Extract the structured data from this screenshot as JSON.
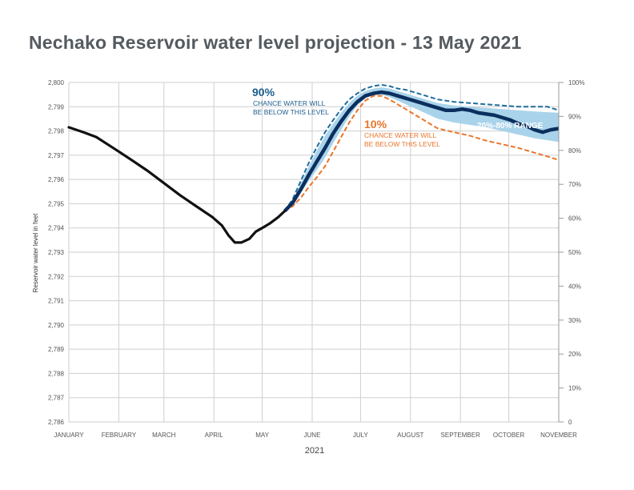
{
  "title": "Nechako Reservoir water level projection - 13 May 2021",
  "chart_data": {
    "type": "line",
    "title": "Nechako Reservoir water level projection - 13 May 2021",
    "xlabel": "2021",
    "ylabel": "Reservoir water level in feet",
    "ylim": [
      2786,
      2800
    ],
    "y2lim": [
      0,
      100
    ],
    "x_unit": "day of year 2021",
    "xlim": [
      1,
      305
    ],
    "grid": true,
    "months": [
      {
        "label": "JANUARY",
        "day": 1
      },
      {
        "label": "FEBRUARY",
        "day": 32
      },
      {
        "label": "MARCH",
        "day": 60
      },
      {
        "label": "APRIL",
        "day": 91
      },
      {
        "label": "MAY",
        "day": 121
      },
      {
        "label": "JUNE",
        "day": 152
      },
      {
        "label": "JULY",
        "day": 182
      },
      {
        "label": "AUGUST",
        "day": 213
      },
      {
        "label": "SEPTEMBER",
        "day": 244
      },
      {
        "label": "OCTOBER",
        "day": 274
      },
      {
        "label": "NOVEMBER",
        "day": 305
      }
    ],
    "y_ticks": [
      "2,786",
      "2,787",
      "2,788",
      "2,789",
      "2,790",
      "2,791",
      "2,792",
      "2,793",
      "2,794",
      "2,795",
      "2,796",
      "2,797",
      "2,798",
      "2,799",
      "2,800"
    ],
    "y2_ticks": [
      "0",
      "10%",
      "20%",
      "30%",
      "40%",
      "50%",
      "60%",
      "70%",
      "80%",
      "90%",
      "100%"
    ],
    "annotations": {
      "p90_pct": "90%",
      "p90_text1": "CHANCE WATER WILL",
      "p90_text2": "BE BELOW THIS LEVEL",
      "p10_pct": "10%",
      "p10_text1": "CHANCE WATER WILL",
      "p10_text2": "BE BELOW THIS LEVEL",
      "range": "20%-80% RANGE"
    },
    "colors": {
      "observed": "#111111",
      "median": "#0b2f5e",
      "p90": "#1f6e9f",
      "p10": "#e8762c",
      "band": "#a9d3ea",
      "grid": "#cfcfcf"
    },
    "series": {
      "observed": [
        [
          1,
          2798.15
        ],
        [
          10,
          2797.95
        ],
        [
          18,
          2797.75
        ],
        [
          25,
          2797.45
        ],
        [
          32,
          2797.15
        ],
        [
          40,
          2796.8
        ],
        [
          50,
          2796.35
        ],
        [
          60,
          2795.85
        ],
        [
          70,
          2795.35
        ],
        [
          80,
          2794.9
        ],
        [
          90,
          2794.45
        ],
        [
          96,
          2794.1
        ],
        [
          100,
          2793.7
        ],
        [
          104,
          2793.4
        ],
        [
          108,
          2793.4
        ],
        [
          113,
          2793.55
        ],
        [
          117,
          2793.85
        ],
        [
          121,
          2794.0
        ],
        [
          126,
          2794.2
        ],
        [
          131,
          2794.45
        ],
        [
          135,
          2794.7
        ]
      ],
      "median": [
        [
          135,
          2794.7
        ],
        [
          140,
          2795.05
        ],
        [
          145,
          2795.6
        ],
        [
          150,
          2796.2
        ],
        [
          155,
          2796.75
        ],
        [
          160,
          2797.3
        ],
        [
          165,
          2797.9
        ],
        [
          170,
          2798.4
        ],
        [
          175,
          2798.85
        ],
        [
          180,
          2799.2
        ],
        [
          185,
          2799.45
        ],
        [
          190,
          2799.55
        ],
        [
          195,
          2799.6
        ],
        [
          200,
          2799.55
        ],
        [
          205,
          2799.45
        ],
        [
          210,
          2799.35
        ],
        [
          215,
          2799.25
        ],
        [
          220,
          2799.15
        ],
        [
          225,
          2799.05
        ],
        [
          230,
          2798.95
        ],
        [
          235,
          2798.85
        ],
        [
          240,
          2798.85
        ],
        [
          245,
          2798.9
        ],
        [
          250,
          2798.85
        ],
        [
          255,
          2798.75
        ],
        [
          260,
          2798.7
        ],
        [
          265,
          2798.65
        ],
        [
          270,
          2798.55
        ],
        [
          275,
          2798.45
        ],
        [
          280,
          2798.3
        ],
        [
          285,
          2798.2
        ],
        [
          290,
          2798.05
        ],
        [
          295,
          2797.95
        ],
        [
          300,
          2798.05
        ],
        [
          305,
          2798.1
        ]
      ],
      "p90": [
        [
          135,
          2794.7
        ],
        [
          140,
          2795.2
        ],
        [
          145,
          2795.95
        ],
        [
          150,
          2796.7
        ],
        [
          155,
          2797.35
        ],
        [
          160,
          2797.95
        ],
        [
          165,
          2798.45
        ],
        [
          170,
          2798.9
        ],
        [
          175,
          2799.3
        ],
        [
          180,
          2799.55
        ],
        [
          185,
          2799.75
        ],
        [
          190,
          2799.85
        ],
        [
          195,
          2799.9
        ],
        [
          200,
          2799.85
        ],
        [
          205,
          2799.75
        ],
        [
          210,
          2799.7
        ],
        [
          215,
          2799.6
        ],
        [
          220,
          2799.5
        ],
        [
          225,
          2799.4
        ],
        [
          230,
          2799.3
        ],
        [
          240,
          2799.2
        ],
        [
          250,
          2799.15
        ],
        [
          260,
          2799.1
        ],
        [
          270,
          2799.05
        ],
        [
          280,
          2799.0
        ],
        [
          290,
          2799.0
        ],
        [
          298,
          2799.0
        ],
        [
          305,
          2798.85
        ]
      ],
      "p10": [
        [
          135,
          2794.7
        ],
        [
          140,
          2794.9
        ],
        [
          145,
          2795.25
        ],
        [
          150,
          2795.7
        ],
        [
          155,
          2796.1
        ],
        [
          160,
          2796.55
        ],
        [
          165,
          2797.15
        ],
        [
          170,
          2797.75
        ],
        [
          175,
          2798.35
        ],
        [
          180,
          2798.85
        ],
        [
          185,
          2799.25
        ],
        [
          190,
          2799.45
        ],
        [
          195,
          2799.45
        ],
        [
          200,
          2799.3
        ],
        [
          205,
          2799.1
        ],
        [
          210,
          2798.9
        ],
        [
          215,
          2798.7
        ],
        [
          220,
          2798.5
        ],
        [
          225,
          2798.3
        ],
        [
          230,
          2798.1
        ],
        [
          240,
          2797.95
        ],
        [
          250,
          2797.8
        ],
        [
          260,
          2797.6
        ],
        [
          270,
          2797.45
        ],
        [
          280,
          2797.3
        ],
        [
          290,
          2797.1
        ],
        [
          298,
          2796.95
        ],
        [
          305,
          2796.8
        ]
      ],
      "band_upper": [
        [
          135,
          2794.7
        ],
        [
          140,
          2795.15
        ],
        [
          145,
          2795.85
        ],
        [
          150,
          2796.55
        ],
        [
          155,
          2797.2
        ],
        [
          160,
          2797.8
        ],
        [
          165,
          2798.3
        ],
        [
          170,
          2798.75
        ],
        [
          175,
          2799.15
        ],
        [
          180,
          2799.45
        ],
        [
          185,
          2799.65
        ],
        [
          190,
          2799.75
        ],
        [
          195,
          2799.8
        ],
        [
          200,
          2799.75
        ],
        [
          205,
          2799.65
        ],
        [
          210,
          2799.55
        ],
        [
          215,
          2799.45
        ],
        [
          220,
          2799.35
        ],
        [
          225,
          2799.25
        ],
        [
          230,
          2799.15
        ],
        [
          240,
          2799.05
        ],
        [
          250,
          2799.0
        ],
        [
          260,
          2798.95
        ],
        [
          270,
          2798.9
        ],
        [
          280,
          2798.85
        ],
        [
          290,
          2798.8
        ],
        [
          305,
          2798.75
        ]
      ],
      "band_lower": [
        [
          135,
          2794.7
        ],
        [
          140,
          2795.0
        ],
        [
          145,
          2795.45
        ],
        [
          150,
          2795.95
        ],
        [
          155,
          2796.4
        ],
        [
          160,
          2796.9
        ],
        [
          165,
          2797.5
        ],
        [
          170,
          2798.05
        ],
        [
          175,
          2798.6
        ],
        [
          180,
          2799.05
        ],
        [
          185,
          2799.35
        ],
        [
          190,
          2799.5
        ],
        [
          195,
          2799.5
        ],
        [
          200,
          2799.4
        ],
        [
          205,
          2799.25
        ],
        [
          210,
          2799.1
        ],
        [
          215,
          2798.95
        ],
        [
          220,
          2798.8
        ],
        [
          225,
          2798.65
        ],
        [
          230,
          2798.5
        ],
        [
          240,
          2798.35
        ],
        [
          250,
          2798.25
        ],
        [
          260,
          2798.15
        ],
        [
          270,
          2798.0
        ],
        [
          280,
          2797.85
        ],
        [
          290,
          2797.7
        ],
        [
          305,
          2797.55
        ]
      ]
    }
  }
}
